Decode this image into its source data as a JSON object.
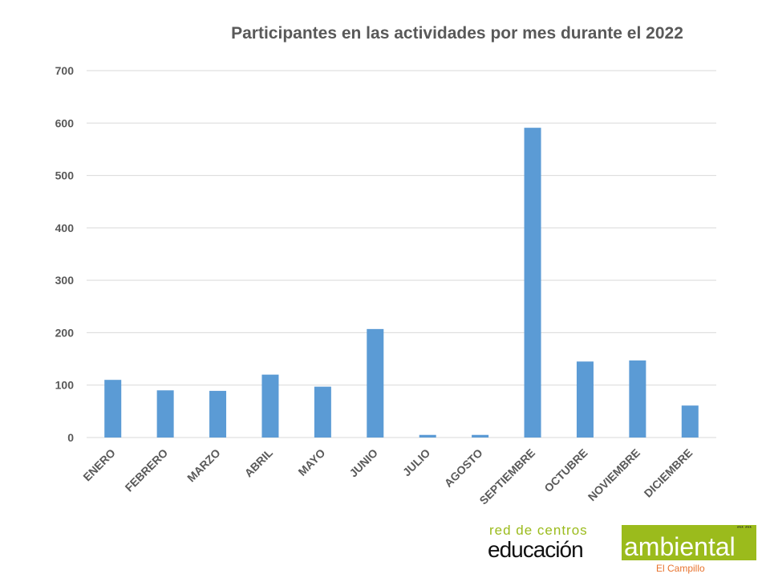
{
  "chart_data": {
    "type": "bar",
    "title": "Participantes en las actividades por mes durante el 2022",
    "categories": [
      "ENERO",
      "FEBRERO",
      "MARZO",
      "ABRIL",
      "MAYO",
      "JUNIO",
      "JULIO",
      "AGOSTO",
      "SEPTIEMBRE",
      "OCTUBRE",
      "NOVIEMBRE",
      "DICIEMBRE"
    ],
    "values": [
      110,
      90,
      89,
      120,
      97,
      207,
      5,
      5,
      591,
      145,
      147,
      61
    ],
    "ylim": [
      0,
      700
    ],
    "yticks": [
      0,
      100,
      200,
      300,
      400,
      500,
      600,
      700
    ],
    "xlabel": "",
    "ylabel": "",
    "grid": true,
    "bar_color": "#5b9bd5"
  },
  "logo": {
    "line1": "red de centros",
    "line2": "educación",
    "line3": "ambiental",
    "line4": "El Campillo",
    "stars": "*** ***"
  }
}
